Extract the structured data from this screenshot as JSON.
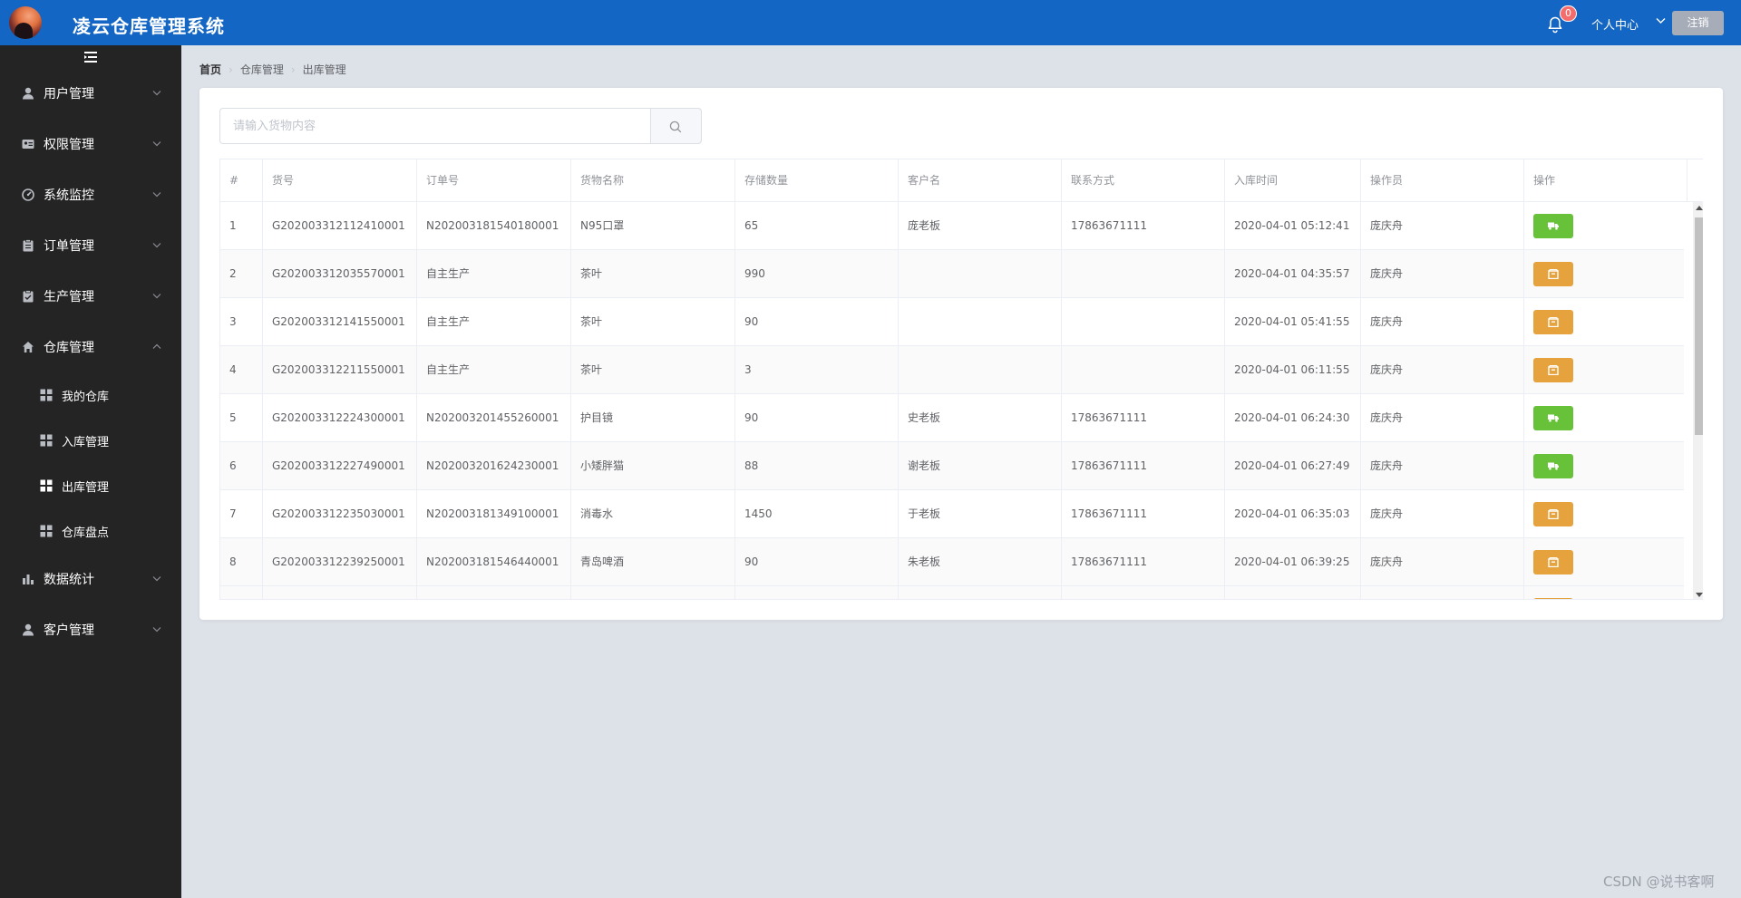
{
  "header": {
    "title": "凌云仓库管理系统",
    "notification_count": "0",
    "user_center_label": "个人中心",
    "logout_label": "注销"
  },
  "sidebar": {
    "menus": [
      {
        "label": "用户管理",
        "icon": "user-icon"
      },
      {
        "label": "权限管理",
        "icon": "id-card-icon"
      },
      {
        "label": "系统监控",
        "icon": "gauge-icon"
      },
      {
        "label": "订单管理",
        "icon": "clipboard-icon"
      },
      {
        "label": "生产管理",
        "icon": "checklist-icon"
      },
      {
        "label": "仓库管理",
        "icon": "home-icon",
        "expanded": true
      },
      {
        "label": "数据统计",
        "icon": "bar-chart-icon"
      },
      {
        "label": "客户管理",
        "icon": "customer-icon"
      }
    ],
    "submenu": [
      {
        "label": "我的仓库"
      },
      {
        "label": "入库管理"
      },
      {
        "label": "出库管理",
        "active": true
      },
      {
        "label": "仓库盘点"
      }
    ]
  },
  "breadcrumb": [
    "首页",
    "仓库管理",
    "出库管理"
  ],
  "search": {
    "placeholder": "请输入货物内容"
  },
  "table": {
    "columns": [
      "#",
      "货号",
      "订单号",
      "货物名称",
      "存储数量",
      "客户名",
      "联系方式",
      "入库时间",
      "操作员",
      "操作"
    ],
    "rows": [
      {
        "no": "1",
        "goods_no": "G202003312112410001",
        "order_no": "N202003181540180001",
        "name": "N95口罩",
        "qty": "65",
        "customer": "庞老板",
        "phone": "17863671111",
        "time": "2020-04-01 05:12:41",
        "operator": "庞庆舟",
        "action": "ship"
      },
      {
        "no": "2",
        "goods_no": "G202003312035570001",
        "order_no": "自主生产",
        "name": "茶叶",
        "qty": "990",
        "customer": "",
        "phone": "",
        "time": "2020-04-01 04:35:57",
        "operator": "庞庆舟",
        "action": "box"
      },
      {
        "no": "3",
        "goods_no": "G202003312141550001",
        "order_no": "自主生产",
        "name": "茶叶",
        "qty": "90",
        "customer": "",
        "phone": "",
        "time": "2020-04-01 05:41:55",
        "operator": "庞庆舟",
        "action": "box"
      },
      {
        "no": "4",
        "goods_no": "G202003312211550001",
        "order_no": "自主生产",
        "name": "茶叶",
        "qty": "3",
        "customer": "",
        "phone": "",
        "time": "2020-04-01 06:11:55",
        "operator": "庞庆舟",
        "action": "box"
      },
      {
        "no": "5",
        "goods_no": "G202003312224300001",
        "order_no": "N202003201455260001",
        "name": "护目镜",
        "qty": "90",
        "customer": "史老板",
        "phone": "17863671111",
        "time": "2020-04-01 06:24:30",
        "operator": "庞庆舟",
        "action": "ship"
      },
      {
        "no": "6",
        "goods_no": "G202003312227490001",
        "order_no": "N202003201624230001",
        "name": "小矮胖猫",
        "qty": "88",
        "customer": "谢老板",
        "phone": "17863671111",
        "time": "2020-04-01 06:27:49",
        "operator": "庞庆舟",
        "action": "ship"
      },
      {
        "no": "7",
        "goods_no": "G202003312235030001",
        "order_no": "N202003181349100001",
        "name": "消毒水",
        "qty": "1450",
        "customer": "于老板",
        "phone": "17863671111",
        "time": "2020-04-01 06:35:03",
        "operator": "庞庆舟",
        "action": "box"
      },
      {
        "no": "8",
        "goods_no": "G202003312239250001",
        "order_no": "N202003181546440001",
        "name": "青岛啤酒",
        "qty": "90",
        "customer": "朱老板",
        "phone": "17863671111",
        "time": "2020-04-01 06:39:25",
        "operator": "庞庆舟",
        "action": "box"
      }
    ]
  },
  "colors": {
    "header_bg": "#1466c4",
    "sidebar_bg": "#242424",
    "ship_button": "#67c23a",
    "box_button": "#e6a23c"
  },
  "watermark": "CSDN @说书客啊"
}
